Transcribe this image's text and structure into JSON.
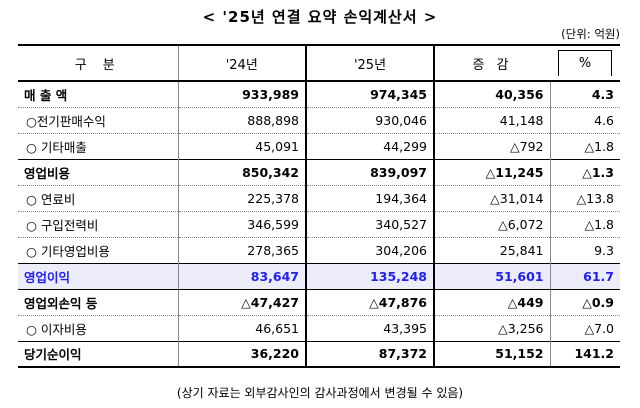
{
  "title": "< '25년 연결 요약 손익계산서 >",
  "unit": "(단위: 억원)",
  "headers": {
    "label": "구  분",
    "y24": "'24년",
    "y25": "'25년",
    "diff": "증  감",
    "pct": "%"
  },
  "rows": [
    {
      "label": "매 출 액",
      "y24": "933,989",
      "y25": "974,345",
      "diff": "40,356",
      "pct": "4.3"
    },
    {
      "label": "○전기판매수익",
      "y24": "888,898",
      "y25": "930,046",
      "diff": "41,148",
      "pct": "4.6"
    },
    {
      "label": "○ 기타매출",
      "y24": "45,091",
      "y25": "44,299",
      "diff": "△792",
      "pct": "△1.8"
    },
    {
      "label": "영업비용",
      "y24": "850,342",
      "y25": "839,097",
      "diff": "△11,245",
      "pct": "△1.3"
    },
    {
      "label": "○ 연료비",
      "y24": "225,378",
      "y25": "194,364",
      "diff": "△31,014",
      "pct": "△13.8"
    },
    {
      "label": "○ 구입전력비",
      "y24": "346,599",
      "y25": "340,527",
      "diff": "△6,072",
      "pct": "△1.8"
    },
    {
      "label": "○ 기타영업비용",
      "y24": "278,365",
      "y25": "304,206",
      "diff": "25,841",
      "pct": "9.3"
    },
    {
      "label": "영업이익",
      "y24": "83,647",
      "y25": "135,248",
      "diff": "51,601",
      "pct": "61.7"
    },
    {
      "label": "영업외손익 등",
      "y24": "△47,427",
      "y25": "△47,876",
      "diff": "△449",
      "pct": "△0.9"
    },
    {
      "label": "○ 이자비용",
      "y24": "46,651",
      "y25": "43,395",
      "diff": "△3,256",
      "pct": "△7.0"
    },
    {
      "label": "당기순이익",
      "y24": "36,220",
      "y25": "87,372",
      "diff": "51,152",
      "pct": "141.2"
    }
  ],
  "footnote": "(상기 자료는 외부감사인의 감사과정에서 변경될 수 있음)",
  "colors": {
    "highlight_text": "#2222ee",
    "highlight_bg": "#ececfa"
  }
}
